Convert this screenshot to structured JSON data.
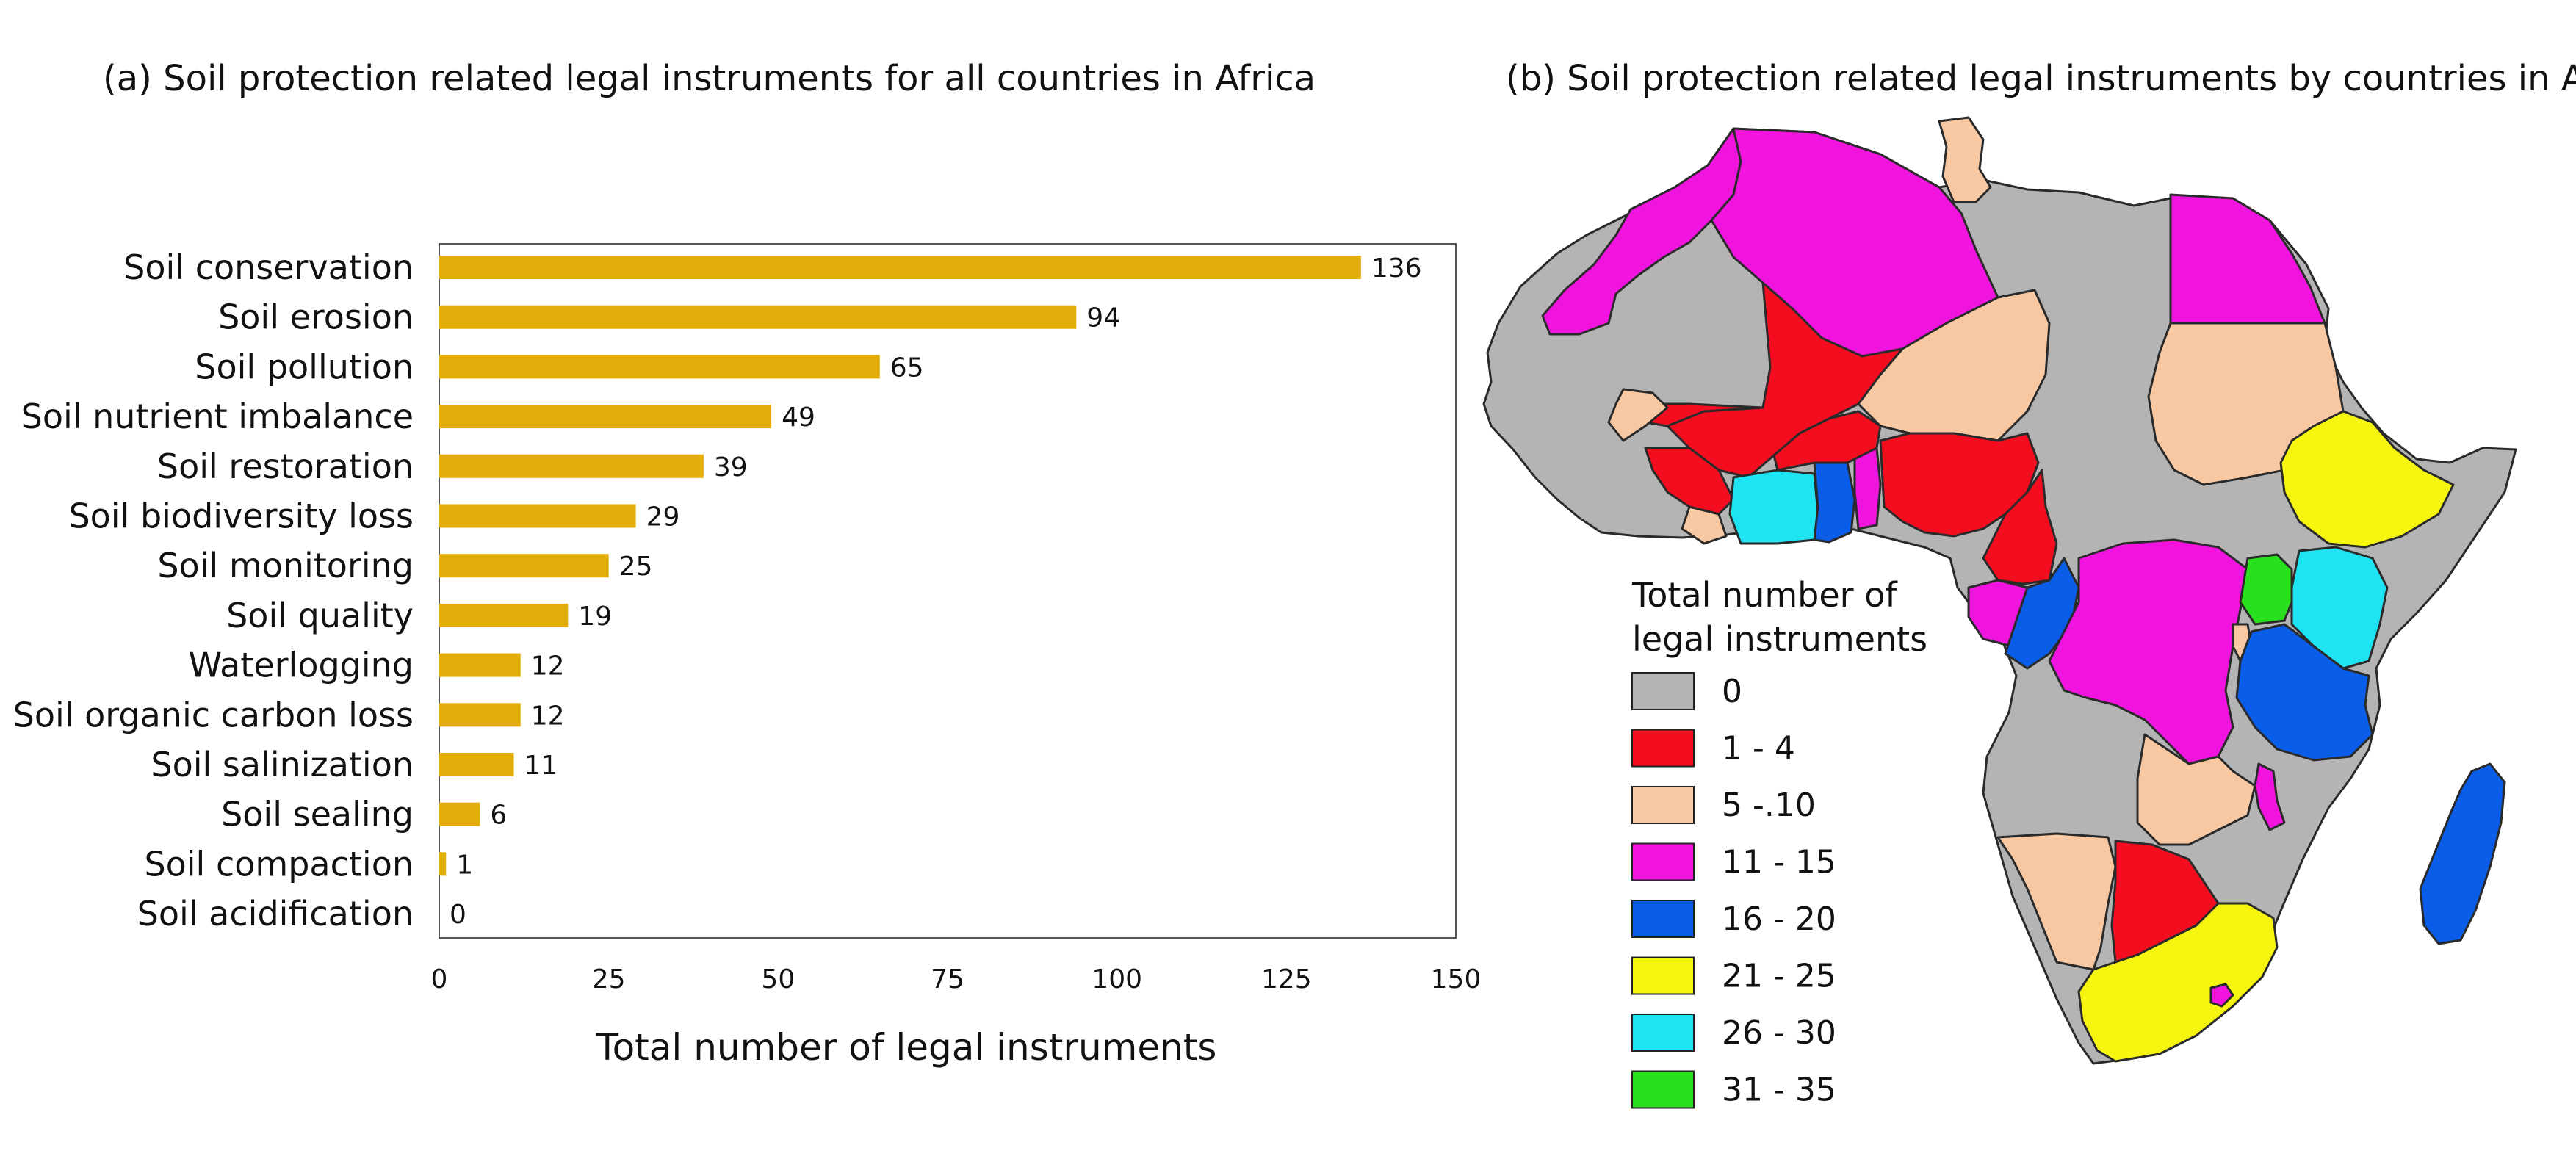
{
  "chart_data": [
    {
      "type": "bar",
      "orientation": "horizontal",
      "title": "(a) Soil protection related legal instruments for all countries in Africa",
      "xlabel": "Total number of legal instruments",
      "ylabel": "",
      "xlim": [
        0,
        150
      ],
      "xticks": [
        0,
        25,
        50,
        75,
        100,
        125,
        150
      ],
      "grid": false,
      "bar_color": "#E2AC09",
      "categories": [
        "Soil conservation",
        "Soil erosion",
        "Soil pollution",
        "Soil nutrient imbalance",
        "Soil restoration",
        "Soil biodiversity loss",
        "Soil monitoring",
        "Soil quality",
        "Waterlogging",
        "Soil organic carbon loss",
        "Soil salinization",
        "Soil sealing",
        "Soil compaction",
        "Soil acidification"
      ],
      "values": [
        136,
        94,
        65,
        49,
        39,
        29,
        25,
        19,
        12,
        12,
        11,
        6,
        1,
        0
      ],
      "data_labels": true
    },
    {
      "type": "choropleth",
      "title": "(b) Soil protection related legal instruments by countries in Africa",
      "legend_title": [
        "Total number of",
        "legal instruments"
      ],
      "legend_placement": "bottom-left",
      "legend": [
        {
          "label": "0",
          "color": "#B4B4B4"
        },
        {
          "label": "1 - 4",
          "color": "#F40D1F"
        },
        {
          "label": "5 -.10",
          "color": "#F8C8A2"
        },
        {
          "label": "11 - 15",
          "color": "#F014DE"
        },
        {
          "label": "16 - 20",
          "color": "#0A5DE8"
        },
        {
          "label": "21 - 25",
          "color": "#F5F510"
        },
        {
          "label": "26 - 30",
          "color": "#1EE3F2"
        },
        {
          "label": "31 - 35",
          "color": "#28E01E"
        }
      ]
    }
  ]
}
